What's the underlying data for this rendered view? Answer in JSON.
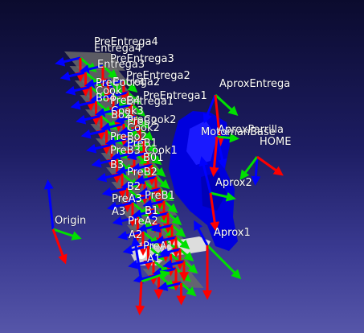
{
  "viewer": {
    "labels": [
      {
        "id": "PreEntrega4",
        "text": "PreEntrega4"
      },
      {
        "id": "Entrega4",
        "text": "Entrega4"
      },
      {
        "id": "PreEntrega3",
        "text": "PreEntrega3"
      },
      {
        "id": "Entrega3",
        "text": "Entrega3"
      },
      {
        "id": "PreEntrega2",
        "text": "PreEntrega2"
      },
      {
        "id": "PreCook4",
        "text": "PreCook4"
      },
      {
        "id": "Entrega2",
        "text": "Entrega2"
      },
      {
        "id": "Cook",
        "text": "Cook"
      },
      {
        "id": "PreEntrega1",
        "text": "PreEntrega1"
      },
      {
        "id": "Bo4",
        "text": "Bo4"
      },
      {
        "id": "PreB4",
        "text": "PreB4"
      },
      {
        "id": "Entrega1",
        "text": "Entrega1"
      },
      {
        "id": "Cook3",
        "text": "Cook3"
      },
      {
        "id": "PreCook2",
        "text": "PreCook2"
      },
      {
        "id": "Bo2",
        "text": "Bo2"
      },
      {
        "id": "PreB2b",
        "text": "PreB2"
      },
      {
        "id": "Cook2",
        "text": "Cook2"
      },
      {
        "id": "PreBo2",
        "text": "PreBo2"
      },
      {
        "id": "PreB1a",
        "text": "PreB1"
      },
      {
        "id": "PreB3",
        "text": "PreB3"
      },
      {
        "id": "Cook1",
        "text": "Cook1"
      },
      {
        "id": "B01",
        "text": "B01"
      },
      {
        "id": "B3",
        "text": "B3"
      },
      {
        "id": "PreB2",
        "text": "PreB2"
      },
      {
        "id": "B2",
        "text": "B2"
      },
      {
        "id": "PreA3",
        "text": "PreA3"
      },
      {
        "id": "PreB1",
        "text": "PreB1"
      },
      {
        "id": "A3",
        "text": "A3"
      },
      {
        "id": "B1",
        "text": "B1"
      },
      {
        "id": "PreA2",
        "text": "PreA2"
      },
      {
        "id": "A2",
        "text": "A2"
      },
      {
        "id": "PreA1",
        "text": "PreA1"
      },
      {
        "id": "A1",
        "text": "A1"
      },
      {
        "id": "Origin",
        "text": "Origin"
      },
      {
        "id": "AproxEntrega",
        "text": "AproxEntrega"
      },
      {
        "id": "AproxParrilla",
        "text": "AproxParrilla"
      },
      {
        "id": "MotomanBase",
        "text": "MotomanBase"
      },
      {
        "id": "HOME",
        "text": "HOME"
      },
      {
        "id": "Aprox2",
        "text": "Aprox2"
      },
      {
        "id": "Aprox1",
        "text": "Aprox1"
      }
    ]
  },
  "colors": {
    "axis_x": "#ff0000",
    "axis_y": "#00e000",
    "axis_z": "#0000ff",
    "robot": "#0000dd",
    "tray": "#6a6a6a",
    "gripper": "#d8d8d8",
    "label": "#ffffff"
  }
}
